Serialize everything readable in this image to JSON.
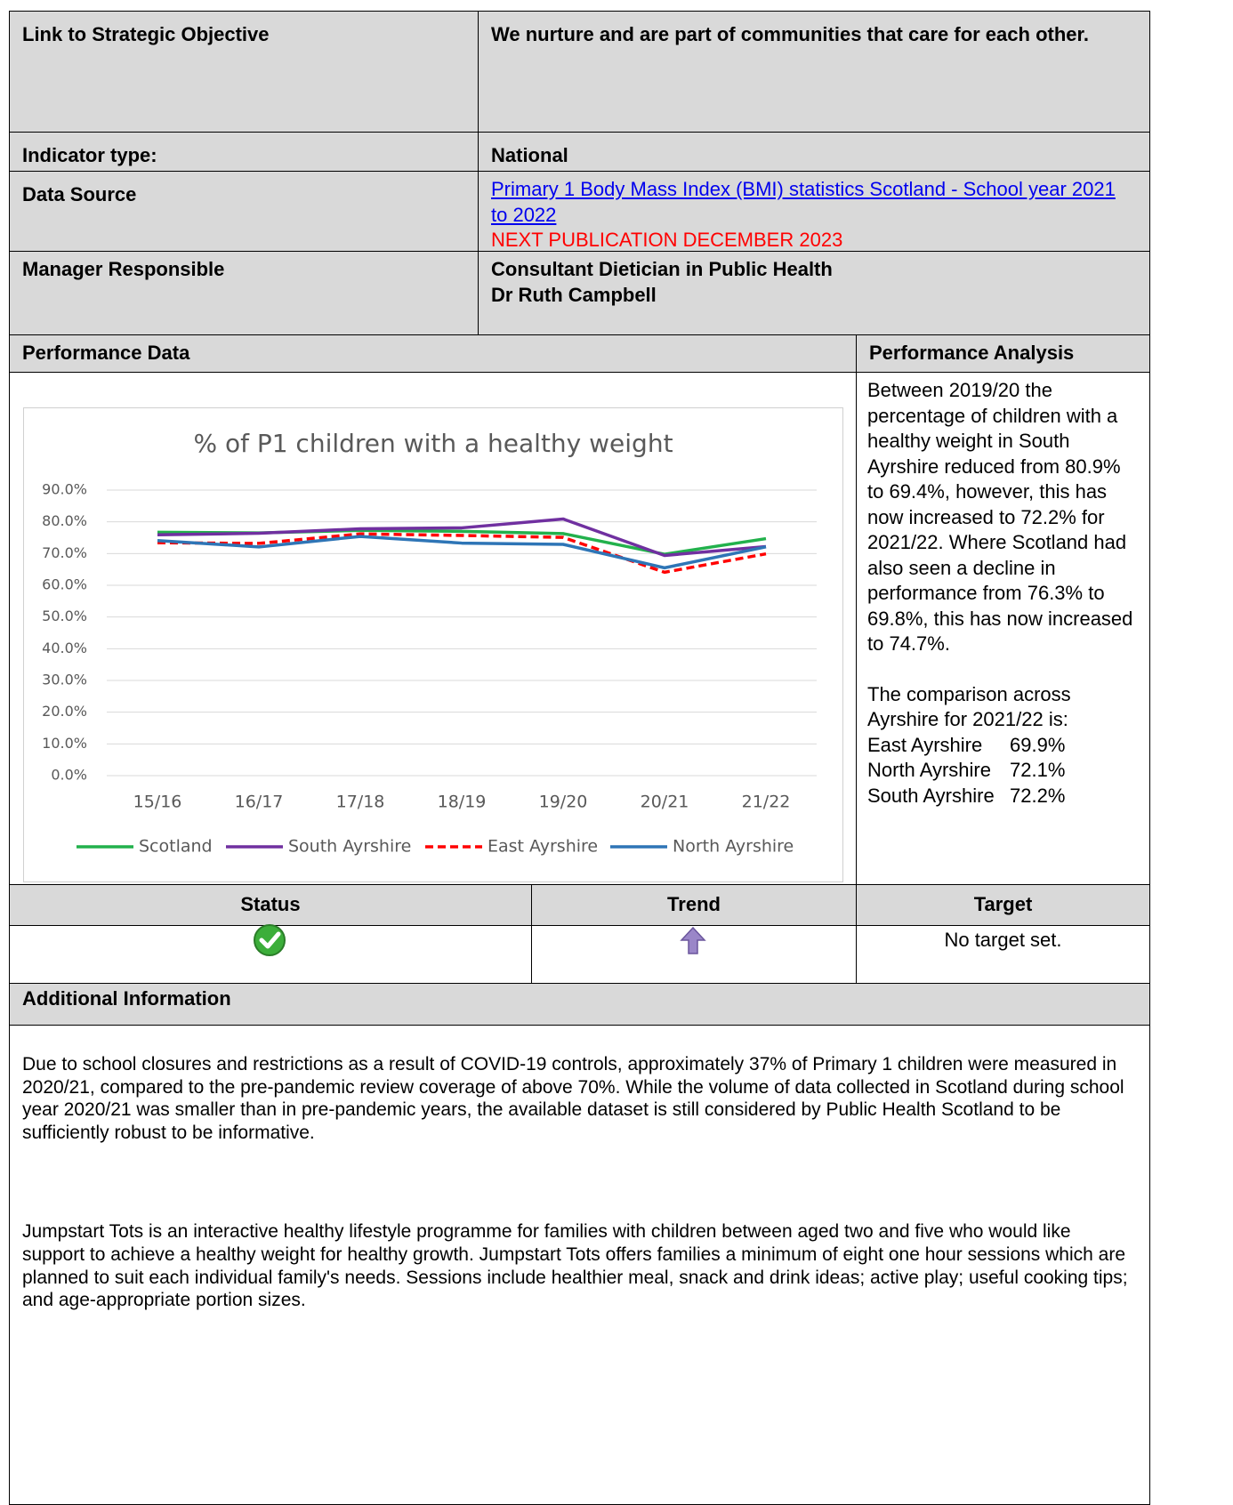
{
  "strategic_objective": {
    "label": "Link to Strategic Objective",
    "value": "We nurture and are part of communities that care for each other."
  },
  "indicator_type": {
    "label": "Indicator type:",
    "value": "National"
  },
  "data_source": {
    "label": "Data Source",
    "link": "Primary 1 Body Mass Index (BMI) statistics Scotland - School year 2021 to 2022",
    "note": "NEXT PUBLICATION DECEMBER 2023"
  },
  "manager": {
    "label": "Manager Responsible",
    "lines": [
      "Consultant Dietician in Public Health",
      "Dr Ruth Campbell"
    ]
  },
  "performance_data": {
    "label": "Performance Data"
  },
  "performance_analysis": {
    "label": "Performance Analysis",
    "paragraph": "Between 2019/20 the percentage of children with a healthy weight in South Ayrshire reduced from 80.9% to 69.4%, however, this has now increased to 72.2% for 2021/22. Where Scotland had also seen a decline in performance from 76.3% to 69.8%, this has now increased to 74.7%.",
    "comparison_intro": "The comparison across Ayrshire for 2021/22 is:",
    "comparison": [
      {
        "area": "East Ayrshire",
        "value": "69.9%"
      },
      {
        "area": "North Ayrshire",
        "value": "72.1%"
      },
      {
        "area": "South Ayrshire",
        "value": "72.2%"
      }
    ]
  },
  "status": {
    "label": "Status"
  },
  "trend": {
    "label": "Trend"
  },
  "target": {
    "label": "Target",
    "value": "No target set."
  },
  "additional_information": {
    "label": "Additional Information",
    "paragraphs": [
      "Due to school closures and restrictions as a result of COVID-19 controls, approximately 37% of Primary 1 children were measured in 2020/21, compared to the pre-pandemic review coverage of above 70%. While the volume of data collected in Scotland during school year 2020/21 was smaller than in pre-pandemic years, the available dataset is still considered by Public Health Scotland to be sufficiently robust to be informative.",
      "Jumpstart Tots is an interactive healthy lifestyle programme for families with children between aged two and five who would like support to achieve a healthy weight for healthy growth. Jumpstart Tots offers families a minimum of eight one hour sessions which are planned to suit each individual family's needs. Sessions include healthier meal, snack and drink ideas; active play; useful cooking tips; and age-appropriate portion sizes."
    ]
  },
  "chart_data": {
    "type": "line",
    "title": "% of P1 children with a healthy weight",
    "categories": [
      "15/16",
      "16/17",
      "17/18",
      "18/19",
      "19/20",
      "20/21",
      "21/22"
    ],
    "series": [
      {
        "name": "Scotland",
        "color": "#22b14c",
        "values": [
          76.7,
          76.5,
          77.3,
          77.0,
          76.3,
          69.8,
          74.7
        ]
      },
      {
        "name": "South Ayrshire",
        "color": "#7030a0",
        "values": [
          75.9,
          76.4,
          77.8,
          78.1,
          80.9,
          69.4,
          72.2
        ]
      },
      {
        "name": "East Ayrshire",
        "color": "#ff0000",
        "dashed": true,
        "values": [
          73.4,
          73.2,
          76.2,
          75.7,
          75.1,
          64.1,
          69.9
        ]
      },
      {
        "name": "North Ayrshire",
        "color": "#2e75b6",
        "values": [
          74.1,
          72.1,
          75.4,
          73.3,
          72.9,
          65.5,
          72.1
        ]
      }
    ],
    "ylim": [
      0,
      90
    ],
    "yticks": [
      {
        "value": 0,
        "label": "0.0%"
      },
      {
        "value": 10,
        "label": "10.0%"
      },
      {
        "value": 20,
        "label": "20.0%"
      },
      {
        "value": 30,
        "label": "30.0%"
      },
      {
        "value": 40,
        "label": "40.0%"
      },
      {
        "value": 50,
        "label": "50.0%"
      },
      {
        "value": 60,
        "label": "60.0%"
      },
      {
        "value": 70,
        "label": "70.0%"
      },
      {
        "value": 80,
        "label": "80.0%"
      },
      {
        "value": 90,
        "label": "90.0%"
      }
    ],
    "grid": true,
    "legend": "bottom"
  }
}
